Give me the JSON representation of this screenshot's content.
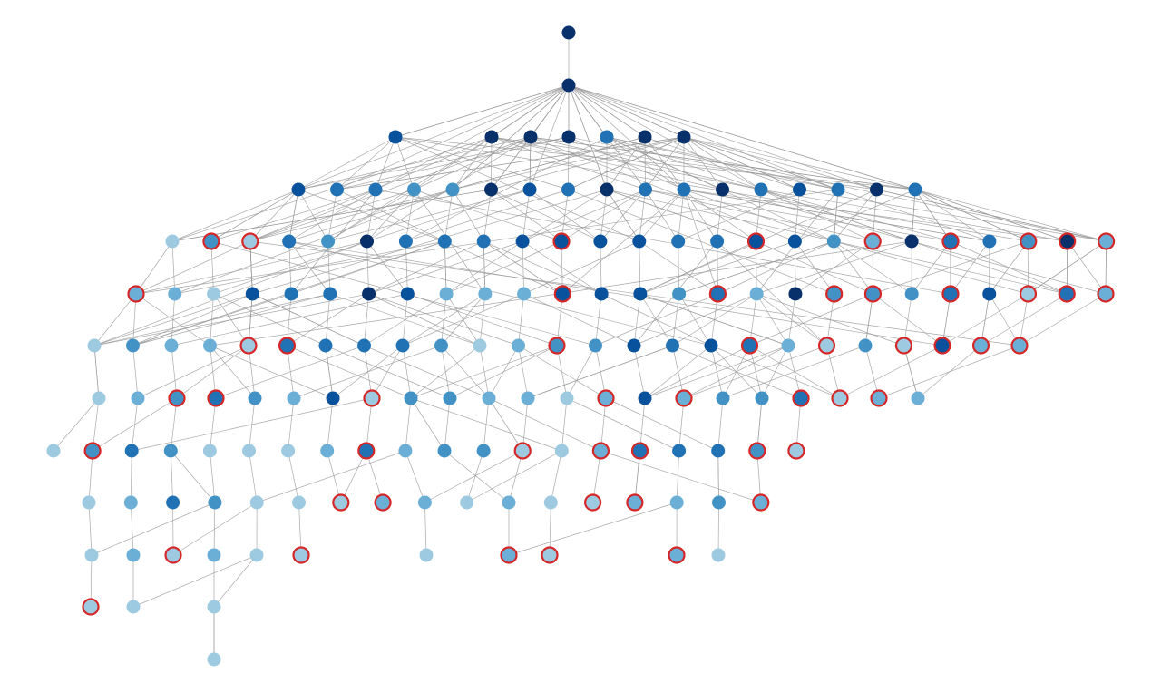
{
  "graph": {
    "colors": [
      "#08306b",
      "#08519c",
      "#2171b5",
      "#4292c6",
      "#6baed6",
      "#9ecae1"
    ],
    "ring_color": "#d62728",
    "levels": [
      {
        "shades": [
          0
        ],
        "ringed": []
      },
      {
        "shades": [
          0
        ],
        "ringed": []
      },
      {
        "shades": [
          1,
          0,
          0,
          0,
          2,
          0,
          0
        ],
        "ringed": []
      },
      {
        "shades": [
          1,
          2,
          2,
          3,
          3,
          0,
          1,
          2,
          0,
          2,
          2,
          0,
          2,
          1,
          2,
          0,
          2
        ],
        "ringed": []
      },
      {
        "shades": [
          5,
          3,
          5,
          2,
          3,
          0,
          2,
          2,
          2,
          1,
          1,
          1,
          1,
          2,
          2,
          1,
          1,
          3,
          4,
          0,
          2,
          2,
          3,
          0,
          4
        ],
        "ringed": [
          1,
          2,
          10,
          15,
          18,
          20,
          22,
          23,
          24
        ]
      },
      {
        "shades": [
          4,
          4,
          5,
          1,
          2,
          2,
          0,
          1,
          4,
          4,
          4,
          1,
          1,
          1,
          3,
          2,
          4,
          0,
          3,
          3,
          3,
          2,
          1,
          5,
          2,
          4
        ],
        "ringed": [
          0,
          11,
          15,
          18,
          19,
          21,
          23,
          24,
          25
        ]
      },
      {
        "shades": [
          5,
          3,
          4,
          4,
          5,
          2,
          2,
          2,
          2,
          3,
          5,
          4,
          3,
          3,
          1,
          2,
          1,
          2,
          4,
          5,
          3,
          5,
          1,
          4,
          4
        ],
        "ringed": [
          4,
          5,
          12,
          17,
          19,
          21,
          22,
          23,
          24
        ]
      },
      {
        "shades": [
          5,
          4,
          3,
          2,
          3,
          4,
          1,
          5,
          3,
          3,
          4,
          4,
          5,
          4,
          1,
          4,
          3,
          3,
          2,
          5,
          4,
          4
        ],
        "ringed": [
          2,
          3,
          7,
          13,
          15,
          18,
          19,
          20
        ]
      },
      {
        "shades": [
          5,
          3,
          2,
          3,
          5,
          5,
          5,
          4,
          2,
          4,
          3,
          3,
          5,
          5,
          4,
          2,
          2,
          2,
          3,
          5
        ],
        "ringed": [
          1,
          8,
          12,
          14,
          15,
          18,
          19
        ]
      },
      {
        "shades": [
          5,
          4,
          2,
          3,
          5,
          5,
          5,
          4,
          4,
          5,
          4,
          5,
          5,
          4,
          4,
          3,
          4
        ],
        "ringed": [
          6,
          7,
          12,
          13,
          16
        ]
      },
      {
        "shades": [
          5,
          4,
          5,
          4,
          5,
          5,
          5,
          4,
          5,
          4,
          5
        ],
        "ringed": [
          2,
          5,
          7,
          8,
          9
        ]
      },
      {
        "shades": [
          5,
          5,
          5
        ],
        "ringed": [
          0
        ]
      },
      {
        "shades": [
          5
        ],
        "ringed": []
      }
    ]
  }
}
